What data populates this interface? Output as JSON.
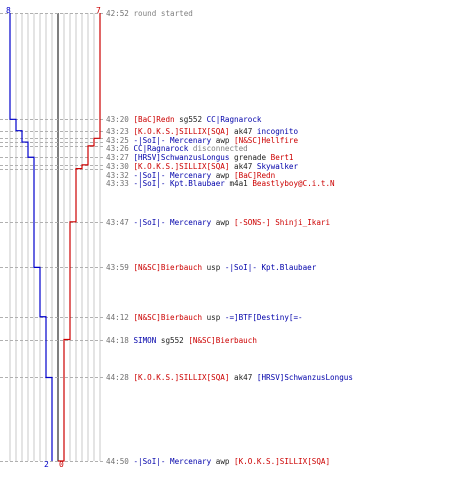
{
  "scores": {
    "blue_start": "8",
    "red_start": "7",
    "blue_end": "2",
    "red_end": "0",
    "blue_color": "#0000cc",
    "red_color": "#cc0000"
  },
  "events": [
    {
      "time": "42:52",
      "parts": [
        {
          "text": "round started",
          "c": "g"
        }
      ]
    },
    {
      "time": "43:20",
      "parts": [
        {
          "text": "[BaC]Redn",
          "c": "r"
        },
        {
          "text": "sg552",
          "c": "k"
        },
        {
          "text": "CC|Ragnarock",
          "c": "b"
        }
      ]
    },
    {
      "time": "43:23",
      "parts": [
        {
          "text": "[K.O.K.S.]SILLIX[SQA]",
          "c": "r"
        },
        {
          "text": "ak47",
          "c": "k"
        },
        {
          "text": "incognito",
          "c": "b"
        }
      ]
    },
    {
      "time": "43:25",
      "parts": [
        {
          "text": "-|SoI|- Mercenary",
          "c": "b"
        },
        {
          "text": "awp",
          "c": "k"
        },
        {
          "text": "[N&SC]Hellfire",
          "c": "r"
        }
      ]
    },
    {
      "time": "43:26",
      "parts": [
        {
          "text": "CC|Ragnarock",
          "c": "b"
        },
        {
          "text": "disconnected",
          "c": "g"
        }
      ]
    },
    {
      "time": "43:27",
      "parts": [
        {
          "text": "[HRSV]SchwanzusLongus",
          "c": "b"
        },
        {
          "text": "grenade",
          "c": "k"
        },
        {
          "text": "Bert1",
          "c": "r"
        }
      ]
    },
    {
      "time": "43:30",
      "parts": [
        {
          "text": "[K.O.K.S.]SILLIX[SQA]",
          "c": "r"
        },
        {
          "text": "ak47",
          "c": "k"
        },
        {
          "text": "Skywalker",
          "c": "b"
        }
      ]
    },
    {
      "time": "43:32",
      "parts": [
        {
          "text": "-|SoI|- Mercenary",
          "c": "b"
        },
        {
          "text": "awp",
          "c": "k"
        },
        {
          "text": "[BaC]Redn",
          "c": "r"
        }
      ]
    },
    {
      "time": "43:33",
      "parts": [
        {
          "text": "-|SoI|- Kpt.Blaubaer",
          "c": "b"
        },
        {
          "text": "m4a1",
          "c": "k"
        },
        {
          "text": "Beastlyboy@C.i.t.N",
          "c": "r"
        }
      ]
    },
    {
      "time": "43:47",
      "parts": [
        {
          "text": "-|SoI|- Mercenary",
          "c": "b"
        },
        {
          "text": "awp",
          "c": "k"
        },
        {
          "text": "[-SONS-] Shinji_Ikari",
          "c": "r"
        }
      ]
    },
    {
      "time": "43:59",
      "parts": [
        {
          "text": "[N&SC]Bierbauch",
          "c": "r"
        },
        {
          "text": "usp",
          "c": "k"
        },
        {
          "text": "-|SoI|- Kpt.Blaubaer",
          "c": "b"
        }
      ]
    },
    {
      "time": "44:12",
      "parts": [
        {
          "text": "[N&SC]Bierbauch",
          "c": "r"
        },
        {
          "text": "usp",
          "c": "k"
        },
        {
          "text": "-=]BTF[Destiny[=-",
          "c": "b"
        }
      ]
    },
    {
      "time": "44:18",
      "parts": [
        {
          "text": "SIMON",
          "c": "b"
        },
        {
          "text": "sg552",
          "c": "k"
        },
        {
          "text": "[N&SC]Bierbauch",
          "c": "r"
        }
      ]
    },
    {
      "time": "44:28",
      "parts": [
        {
          "text": "[K.O.K.S.]SILLIX[SQA]",
          "c": "r"
        },
        {
          "text": "ak47",
          "c": "k"
        },
        {
          "text": "[HRSV]SchwanzusLongus",
          "c": "b"
        }
      ]
    },
    {
      "time": "44:50",
      "parts": [
        {
          "text": "-|SoI|- Mercenary",
          "c": "b"
        },
        {
          "text": "awp",
          "c": "k"
        },
        {
          "text": "[K.O.K.S.]SILLIX[SQA]",
          "c": "r"
        }
      ]
    }
  ]
}
